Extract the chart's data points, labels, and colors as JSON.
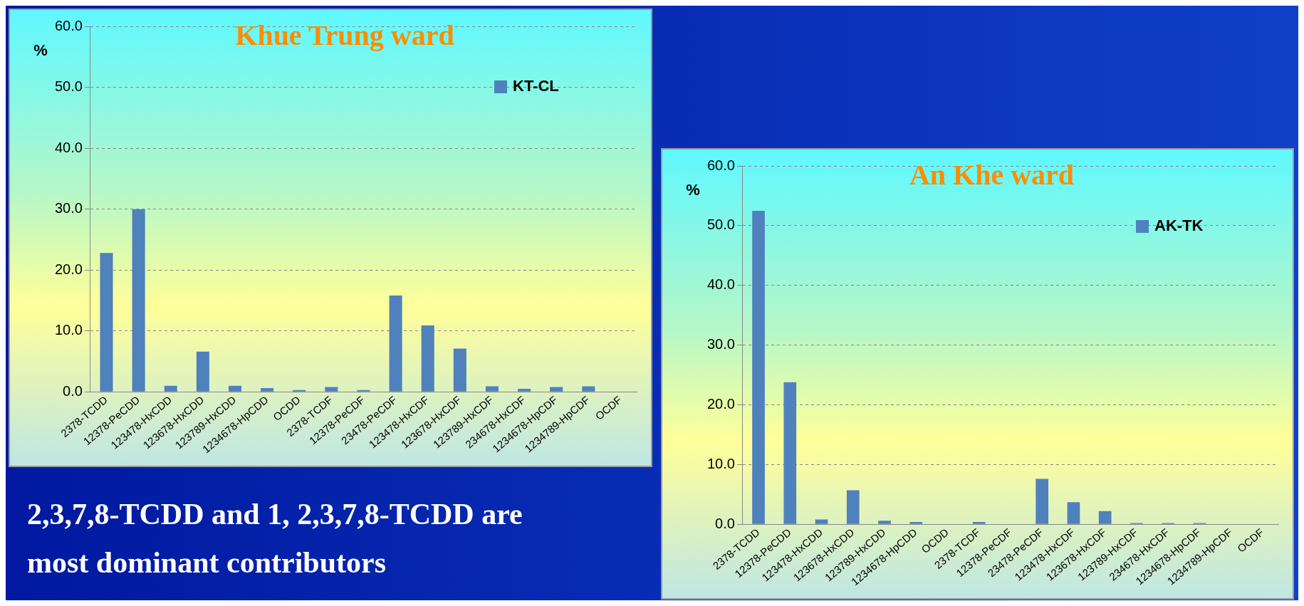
{
  "chart_data": [
    {
      "type": "bar",
      "title": "Khue Trung ward",
      "ylabel": "%",
      "categories": [
        "2378-TCDD",
        "12378-PeCDD",
        "123478-HxCDD",
        "123678-HxCDD",
        "123789-HxCDD",
        "1234678-HpCDD",
        "OCDD",
        "2378-TCDF",
        "12378-PeCDF",
        "23478-PeCDF",
        "123478-HxCDF",
        "123678-HxCDF",
        "123789-HxCDF",
        "234678-HxCDF",
        "1234678-HpCDF",
        "1234789-HpCDF",
        "OCDF"
      ],
      "series": [
        {
          "name": "KT-CL",
          "color": "#4f81bd",
          "values": [
            22.8,
            30.0,
            1.0,
            6.6,
            1.0,
            0.6,
            0.3,
            0.8,
            0.3,
            15.8,
            10.9,
            7.1,
            0.9,
            0.5,
            0.8,
            0.9,
            null
          ]
        }
      ],
      "ylim": [
        0,
        60
      ],
      "yticks": [
        {
          "value": 0,
          "label": "0.0"
        },
        {
          "value": 10,
          "label": "10.0"
        },
        {
          "value": 20,
          "label": "20.0"
        },
        {
          "value": 30,
          "label": "30.0"
        },
        {
          "value": 40,
          "label": "40.0"
        },
        {
          "value": 50,
          "label": "50.0"
        },
        {
          "value": 60,
          "label": "60.0"
        }
      ],
      "grid": "y",
      "legend": "top right",
      "annotations": [
        "2,3,7,8-TCDD and 1, 2,3,7,8-TCDD are most dominant contributors"
      ]
    },
    {
      "type": "bar",
      "title": "An Khe ward",
      "ylabel": "%",
      "categories": [
        "2378-TCDD",
        "12378-PeCDD",
        "123478-HxCDD",
        "123678-HxCDD",
        "123789-HxCDD",
        "1234678-HpCDD",
        "OCDD",
        "2378-TCDF",
        "12378-PeCDF",
        "23478-PeCDF",
        "123478-HxCDF",
        "123678-HxCDF",
        "123789-HxCDF",
        "234678-HxCDF",
        "1234678-HpCDF",
        "1234789-HpCDF",
        "OCDF"
      ],
      "series": [
        {
          "name": "AK-TK",
          "color": "#4f81bd",
          "values": [
            52.5,
            23.8,
            0.8,
            5.7,
            0.6,
            0.4,
            0,
            0.4,
            0,
            7.6,
            3.7,
            2.2,
            0.2,
            0.2,
            0.2,
            0,
            0
          ]
        }
      ],
      "ylim": [
        0,
        60
      ],
      "yticks": [
        {
          "value": 0,
          "label": "0.0"
        },
        {
          "value": 10,
          "label": "10.0"
        },
        {
          "value": 20,
          "label": "20.0"
        },
        {
          "value": 30,
          "label": "30.0"
        },
        {
          "value": 40,
          "label": "40.0"
        },
        {
          "value": 50,
          "label": "50.0"
        },
        {
          "value": 60,
          "label": "60.0"
        }
      ],
      "grid": "y",
      "legend": "top right"
    }
  ]
}
